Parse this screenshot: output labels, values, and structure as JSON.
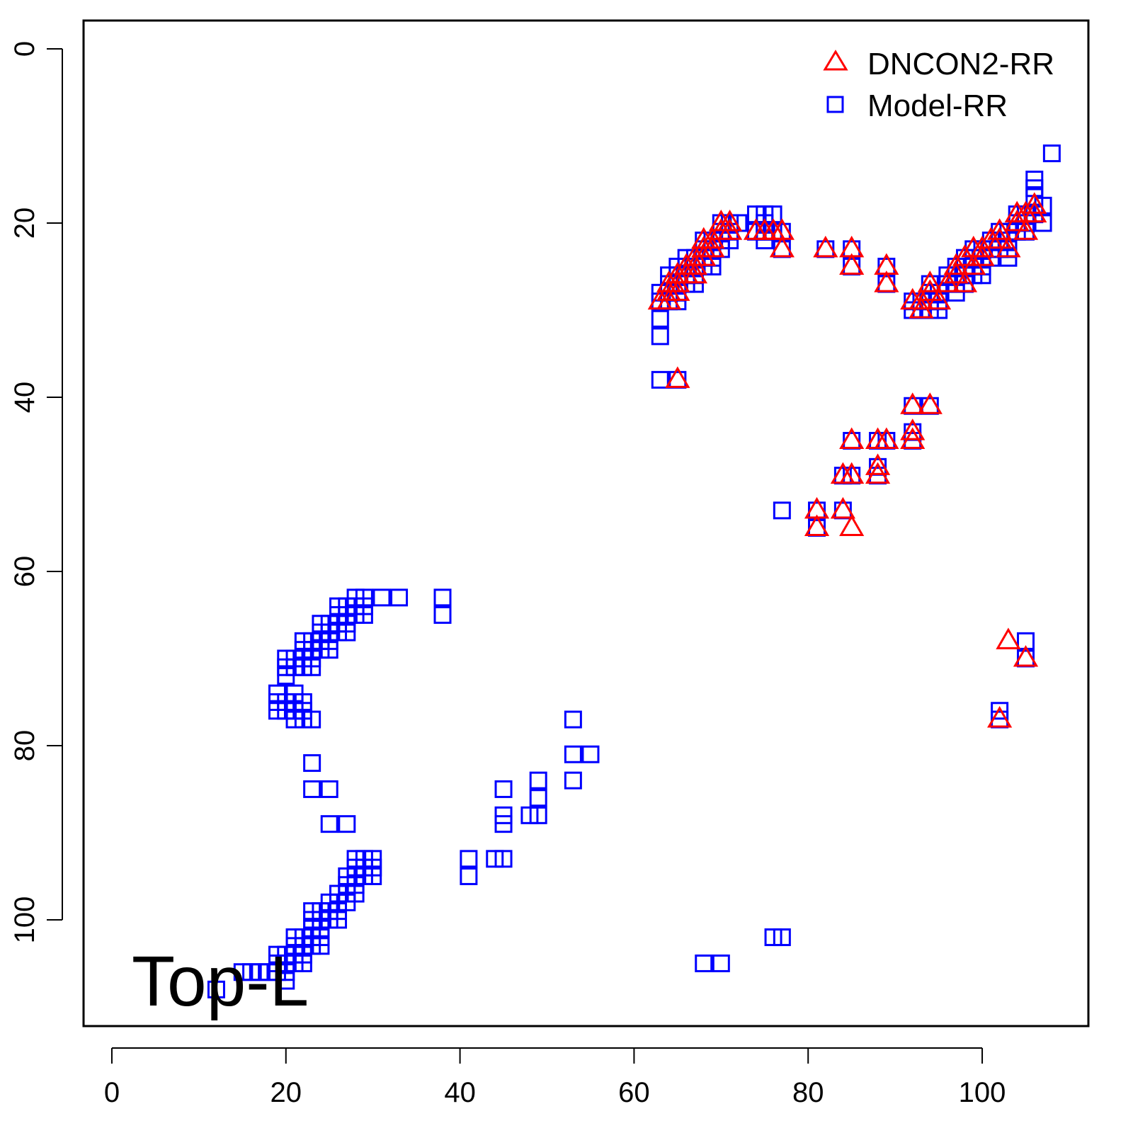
{
  "chart_data": {
    "type": "scatter",
    "title": "",
    "xlabel": "",
    "ylabel": "",
    "xlim": [
      -3.25,
      112.2
    ],
    "ylim": [
      112.2,
      -3.25
    ],
    "y_reversed": true,
    "grid": false,
    "x_ticks": [
      "0",
      "20",
      "40",
      "60",
      "80",
      "100"
    ],
    "x_tick_values": [
      0,
      20,
      40,
      60,
      80,
      100
    ],
    "y_ticks": [
      "0",
      "20",
      "40",
      "60",
      "80",
      "100"
    ],
    "y_tick_values": [
      0,
      20,
      40,
      60,
      80,
      100
    ],
    "annotation": "Top-L",
    "legend": {
      "placement": "top-right",
      "entries": [
        "DNCON2-RR",
        "Model-RR"
      ]
    },
    "colors": {
      "DNCON2-RR": "#ff0000",
      "Model-RR": "#0000ff"
    },
    "series": [
      {
        "name": "Model-RR",
        "marker": "square",
        "points": [
          [
            63,
            28
          ],
          [
            63,
            29
          ],
          [
            63,
            31
          ],
          [
            63,
            33
          ],
          [
            63,
            38
          ],
          [
            64,
            26
          ],
          [
            64,
            27
          ],
          [
            64,
            28
          ],
          [
            64,
            29
          ],
          [
            65,
            25
          ],
          [
            65,
            26
          ],
          [
            65,
            27
          ],
          [
            65,
            28
          ],
          [
            65,
            29
          ],
          [
            65,
            38
          ],
          [
            66,
            24
          ],
          [
            66,
            25
          ],
          [
            66,
            26
          ],
          [
            66,
            27
          ],
          [
            67,
            24
          ],
          [
            67,
            25
          ],
          [
            67,
            26
          ],
          [
            67,
            27
          ],
          [
            68,
            22
          ],
          [
            68,
            23
          ],
          [
            68,
            24
          ],
          [
            68,
            25
          ],
          [
            69,
            22
          ],
          [
            69,
            23
          ],
          [
            69,
            24
          ],
          [
            69,
            25
          ],
          [
            70,
            20
          ],
          [
            70,
            21
          ],
          [
            70,
            22
          ],
          [
            70,
            23
          ],
          [
            71,
            20
          ],
          [
            71,
            21
          ],
          [
            71,
            22
          ],
          [
            72,
            20
          ],
          [
            74,
            19
          ],
          [
            74,
            21
          ],
          [
            75,
            19
          ],
          [
            75,
            20
          ],
          [
            75,
            21
          ],
          [
            75,
            22
          ],
          [
            76,
            19
          ],
          [
            76,
            21
          ],
          [
            77,
            21
          ],
          [
            77,
            23
          ],
          [
            77,
            53
          ],
          [
            82,
            23
          ],
          [
            85,
            23
          ],
          [
            85,
            25
          ],
          [
            89,
            25
          ],
          [
            89,
            27
          ],
          [
            92,
            29
          ],
          [
            92,
            30
          ],
          [
            93,
            29
          ],
          [
            93,
            30
          ],
          [
            94,
            27
          ],
          [
            94,
            28
          ],
          [
            94,
            29
          ],
          [
            94,
            30
          ],
          [
            95,
            28
          ],
          [
            95,
            29
          ],
          [
            95,
            30
          ],
          [
            96,
            26
          ],
          [
            96,
            27
          ],
          [
            97,
            25
          ],
          [
            97,
            26
          ],
          [
            97,
            27
          ],
          [
            97,
            28
          ],
          [
            98,
            24
          ],
          [
            98,
            25
          ],
          [
            98,
            26
          ],
          [
            98,
            27
          ],
          [
            99,
            23
          ],
          [
            99,
            24
          ],
          [
            99,
            25
          ],
          [
            99,
            26
          ],
          [
            100,
            23
          ],
          [
            100,
            24
          ],
          [
            100,
            25
          ],
          [
            100,
            26
          ],
          [
            101,
            22
          ],
          [
            101,
            23
          ],
          [
            101,
            24
          ],
          [
            102,
            21
          ],
          [
            102,
            22
          ],
          [
            102,
            23
          ],
          [
            103,
            21
          ],
          [
            103,
            22
          ],
          [
            103,
            23
          ],
          [
            103,
            24
          ],
          [
            104,
            19
          ],
          [
            104,
            20
          ],
          [
            104,
            21
          ],
          [
            105,
            19
          ],
          [
            105,
            20
          ],
          [
            105,
            21
          ],
          [
            106,
            15
          ],
          [
            106,
            16
          ],
          [
            106,
            17
          ],
          [
            106,
            19
          ],
          [
            107,
            18
          ],
          [
            107,
            20
          ],
          [
            108,
            12
          ],
          [
            81,
            53
          ],
          [
            81,
            55
          ],
          [
            84,
            49
          ],
          [
            84,
            53
          ],
          [
            85,
            45
          ],
          [
            85,
            49
          ],
          [
            88,
            45
          ],
          [
            88,
            48
          ],
          [
            88,
            49
          ],
          [
            89,
            45
          ],
          [
            92,
            41
          ],
          [
            92,
            44
          ],
          [
            92,
            45
          ],
          [
            94,
            41
          ],
          [
            102,
            76
          ],
          [
            102,
            77
          ],
          [
            105,
            68
          ],
          [
            105,
            70
          ],
          [
            28,
            63
          ],
          [
            29,
            63
          ],
          [
            31,
            63
          ],
          [
            33,
            63
          ],
          [
            26,
            64
          ],
          [
            27,
            64
          ],
          [
            28,
            64
          ],
          [
            29,
            64
          ],
          [
            26,
            65
          ],
          [
            27,
            65
          ],
          [
            28,
            65
          ],
          [
            29,
            65
          ],
          [
            24,
            66
          ],
          [
            25,
            66
          ],
          [
            26,
            66
          ],
          [
            27,
            66
          ],
          [
            24,
            67
          ],
          [
            25,
            67
          ],
          [
            26,
            67
          ],
          [
            27,
            67
          ],
          [
            22,
            68
          ],
          [
            23,
            68
          ],
          [
            24,
            68
          ],
          [
            25,
            68
          ],
          [
            22,
            69
          ],
          [
            23,
            69
          ],
          [
            24,
            69
          ],
          [
            25,
            69
          ],
          [
            20,
            70
          ],
          [
            21,
            70
          ],
          [
            22,
            70
          ],
          [
            23,
            70
          ],
          [
            20,
            71
          ],
          [
            21,
            71
          ],
          [
            22,
            71
          ],
          [
            23,
            71
          ],
          [
            20,
            72
          ],
          [
            19,
            74
          ],
          [
            21,
            74
          ],
          [
            19,
            75
          ],
          [
            20,
            75
          ],
          [
            21,
            75
          ],
          [
            22,
            75
          ],
          [
            19,
            76
          ],
          [
            20,
            76
          ],
          [
            21,
            76
          ],
          [
            22,
            76
          ],
          [
            21,
            77
          ],
          [
            22,
            77
          ],
          [
            23,
            77
          ],
          [
            23,
            82
          ],
          [
            23,
            85
          ],
          [
            25,
            85
          ],
          [
            25,
            89
          ],
          [
            27,
            89
          ],
          [
            28,
            93
          ],
          [
            29,
            93
          ],
          [
            30,
            93
          ],
          [
            28,
            94
          ],
          [
            29,
            94
          ],
          [
            30,
            94
          ],
          [
            27,
            95
          ],
          [
            28,
            95
          ],
          [
            29,
            95
          ],
          [
            30,
            95
          ],
          [
            27,
            96
          ],
          [
            28,
            96
          ],
          [
            26,
            97
          ],
          [
            27,
            97
          ],
          [
            28,
            97
          ],
          [
            25,
            98
          ],
          [
            26,
            98
          ],
          [
            27,
            98
          ],
          [
            25,
            99
          ],
          [
            26,
            99
          ],
          [
            23,
            99
          ],
          [
            24,
            99
          ],
          [
            23,
            100
          ],
          [
            24,
            100
          ],
          [
            25,
            100
          ],
          [
            26,
            100
          ],
          [
            23,
            101
          ],
          [
            24,
            101
          ],
          [
            21,
            102
          ],
          [
            22,
            102
          ],
          [
            23,
            102
          ],
          [
            24,
            102
          ],
          [
            21,
            103
          ],
          [
            22,
            103
          ],
          [
            23,
            103
          ],
          [
            24,
            103
          ],
          [
            19,
            104
          ],
          [
            20,
            104
          ],
          [
            21,
            104
          ],
          [
            22,
            104
          ],
          [
            19,
            105
          ],
          [
            20,
            105
          ],
          [
            21,
            105
          ],
          [
            22,
            105
          ],
          [
            15,
            106
          ],
          [
            16,
            106
          ],
          [
            17,
            106
          ],
          [
            18,
            106
          ],
          [
            19,
            106
          ],
          [
            20,
            106
          ],
          [
            12,
            108
          ],
          [
            20,
            107
          ],
          [
            38,
            63
          ],
          [
            38,
            65
          ],
          [
            41,
            93
          ],
          [
            41,
            95
          ],
          [
            44,
            93
          ],
          [
            45,
            93
          ],
          [
            45,
            85
          ],
          [
            45,
            88
          ],
          [
            45,
            89
          ],
          [
            48,
            88
          ],
          [
            49,
            88
          ],
          [
            49,
            84
          ],
          [
            49,
            86
          ],
          [
            53,
            77
          ],
          [
            53,
            81
          ],
          [
            55,
            81
          ],
          [
            53,
            84
          ],
          [
            68,
            105
          ],
          [
            70,
            105
          ],
          [
            76,
            102
          ],
          [
            77,
            102
          ]
        ]
      },
      {
        "name": "DNCON2-RR",
        "marker": "triangle",
        "points": [
          [
            63,
            29
          ],
          [
            64,
            27
          ],
          [
            64,
            28
          ],
          [
            64,
            29
          ],
          [
            65,
            26
          ],
          [
            65,
            27
          ],
          [
            65,
            28
          ],
          [
            65,
            38
          ],
          [
            66,
            25
          ],
          [
            66,
            26
          ],
          [
            67,
            24
          ],
          [
            67,
            25
          ],
          [
            67,
            26
          ],
          [
            68,
            22
          ],
          [
            68,
            23
          ],
          [
            68,
            24
          ],
          [
            69,
            22
          ],
          [
            69,
            23
          ],
          [
            70,
            20
          ],
          [
            70,
            21
          ],
          [
            71,
            20
          ],
          [
            71,
            21
          ],
          [
            74,
            21
          ],
          [
            75,
            21
          ],
          [
            76,
            21
          ],
          [
            77,
            21
          ],
          [
            77,
            23
          ],
          [
            82,
            23
          ],
          [
            85,
            23
          ],
          [
            85,
            25
          ],
          [
            89,
            25
          ],
          [
            89,
            27
          ],
          [
            92,
            29
          ],
          [
            93,
            29
          ],
          [
            93,
            30
          ],
          [
            94,
            27
          ],
          [
            94,
            28
          ],
          [
            95,
            29
          ],
          [
            96,
            27
          ],
          [
            97,
            25
          ],
          [
            97,
            26
          ],
          [
            98,
            24
          ],
          [
            98,
            27
          ],
          [
            99,
            23
          ],
          [
            99,
            25
          ],
          [
            100,
            23
          ],
          [
            100,
            24
          ],
          [
            101,
            22
          ],
          [
            102,
            21
          ],
          [
            102,
            22
          ],
          [
            103,
            23
          ],
          [
            104,
            19
          ],
          [
            104,
            20
          ],
          [
            105,
            19
          ],
          [
            105,
            21
          ],
          [
            106,
            18
          ],
          [
            106,
            19
          ],
          [
            81,
            53
          ],
          [
            81,
            55
          ],
          [
            84,
            49
          ],
          [
            84,
            53
          ],
          [
            85,
            45
          ],
          [
            85,
            49
          ],
          [
            85,
            55
          ],
          [
            88,
            45
          ],
          [
            88,
            48
          ],
          [
            88,
            49
          ],
          [
            89,
            45
          ],
          [
            92,
            41
          ],
          [
            92,
            44
          ],
          [
            92,
            45
          ],
          [
            94,
            41
          ],
          [
            103,
            68
          ],
          [
            105,
            70
          ],
          [
            102,
            77
          ]
        ]
      }
    ]
  }
}
